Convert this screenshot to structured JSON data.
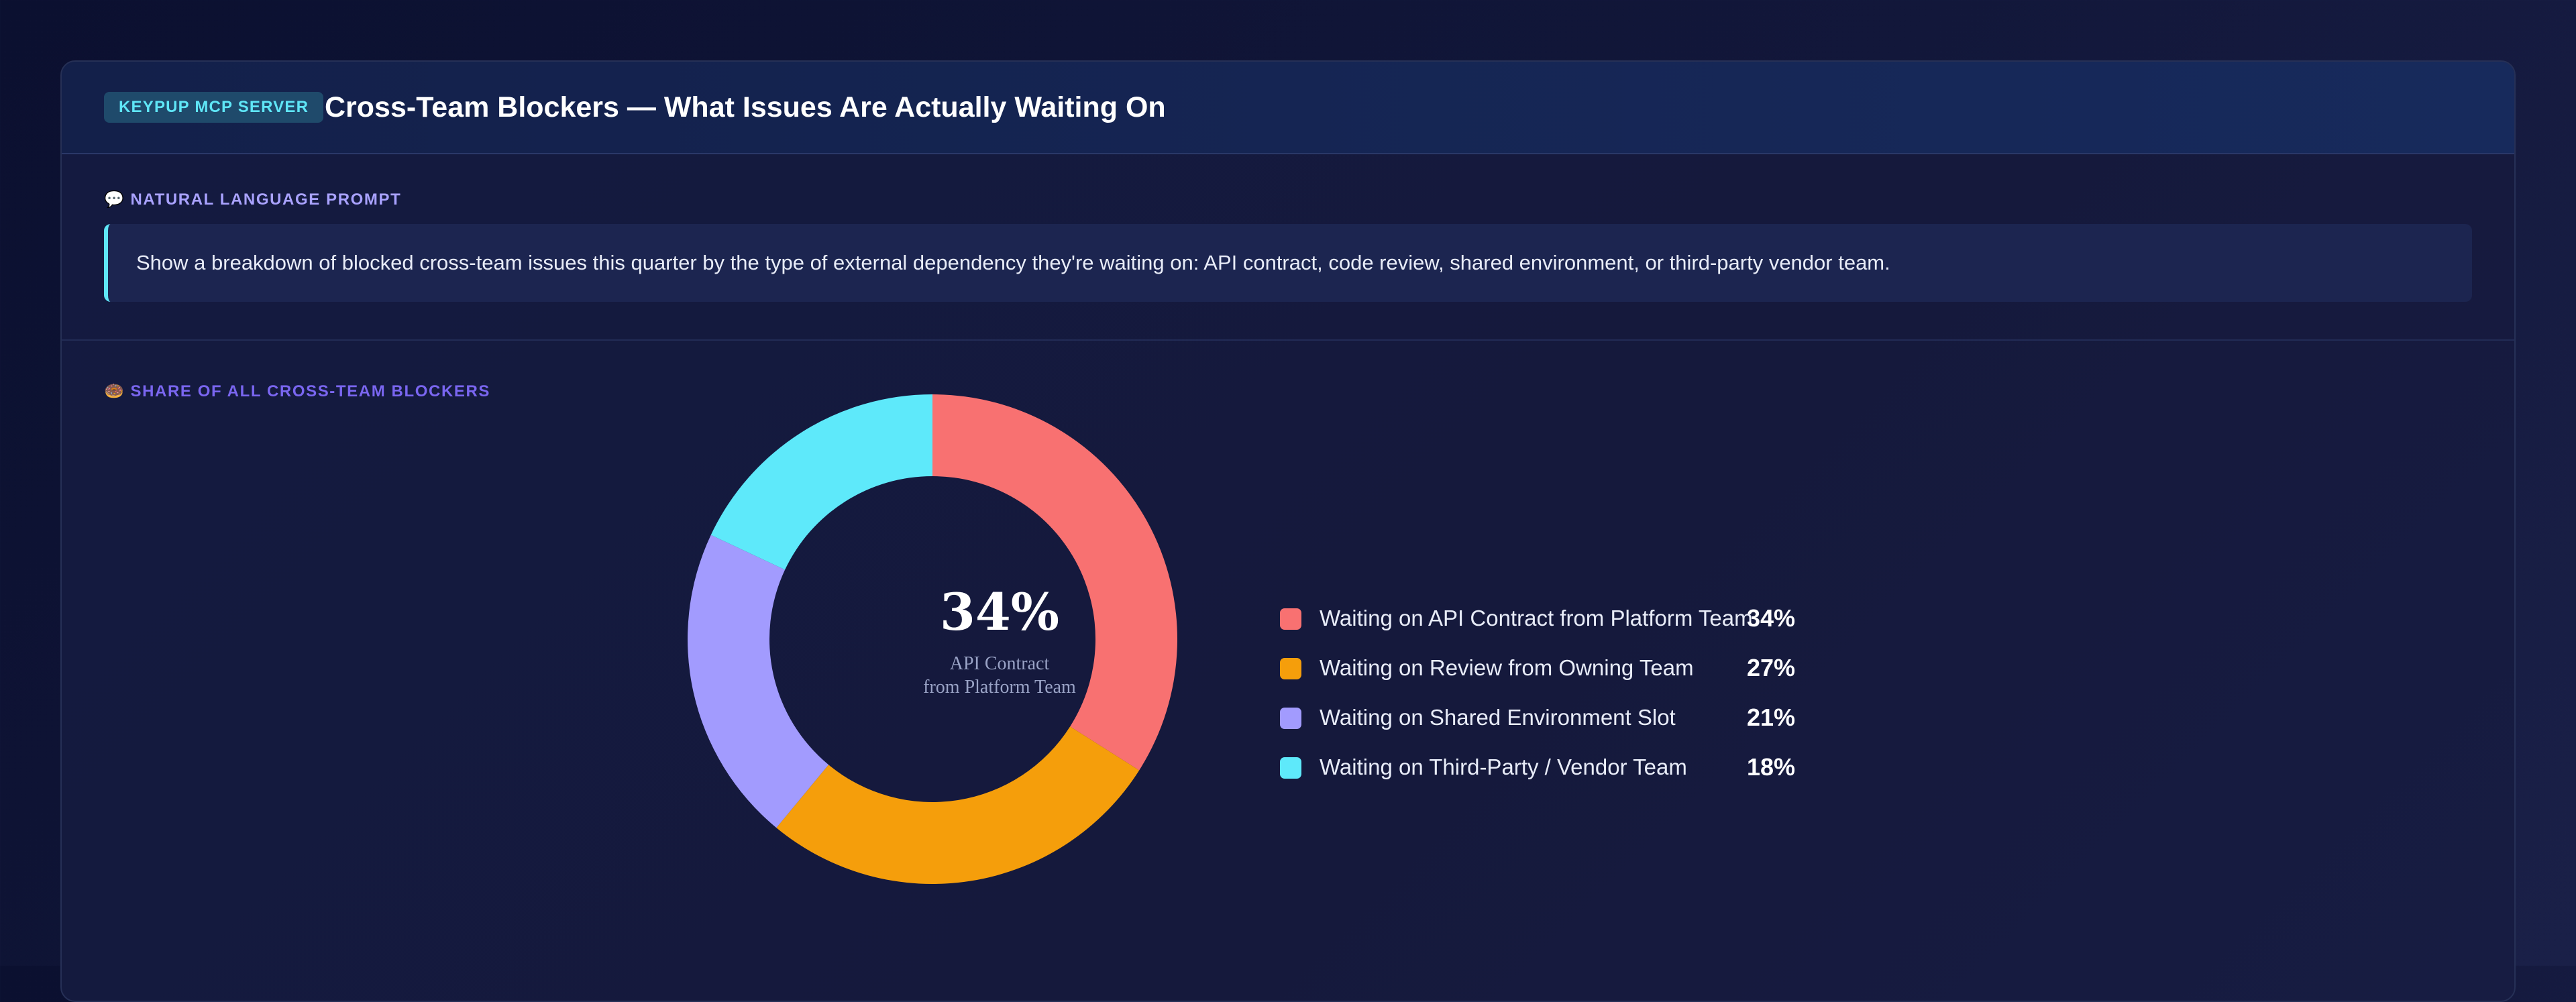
{
  "header": {
    "badge": "KEYPUP MCP SERVER",
    "title": "Cross-Team Blockers — What Issues Are Actually Waiting On"
  },
  "prompt": {
    "label": "NATURAL LANGUAGE PROMPT",
    "icon": "speech-bubble-icon",
    "text": "Show a breakdown of blocked cross-team issues this quarter by the type of external dependency they're waiting on: API contract, code review, shared environment, or third-party vendor team."
  },
  "share": {
    "label": "SHARE OF ALL CROSS-TEAM BLOCKERS",
    "icon": "donut-icon"
  },
  "chart_data": {
    "type": "pie",
    "style": "donut",
    "title": "",
    "categories": [
      "Waiting on API Contract from Platform Team",
      "Waiting on Review from Owning Team",
      "Waiting on Shared Environment Slot",
      "Waiting on Third-Party / Vendor Team"
    ],
    "values": [
      34,
      27,
      21,
      18
    ],
    "value_labels": [
      "34%",
      "27%",
      "21%",
      "18%"
    ],
    "colors": [
      "#f87171",
      "#f59e0b",
      "#a29bfe",
      "#5ee9fa"
    ],
    "center": {
      "value": "34%",
      "caption_line1": "API Contract",
      "caption_line2": "from Platform Team"
    },
    "legend_position": "right"
  }
}
